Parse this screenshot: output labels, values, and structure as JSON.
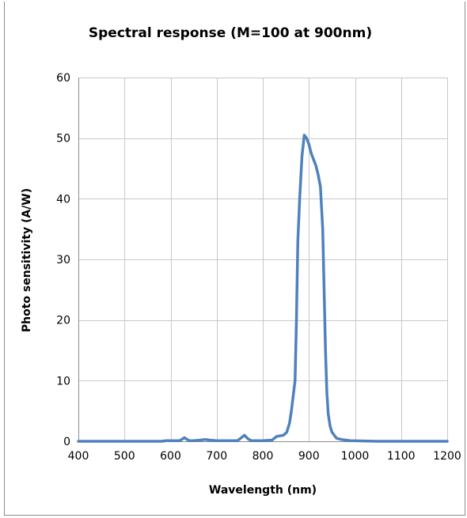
{
  "chart_data": {
    "type": "line",
    "title": "Spectral response (M=100 at 900nm)",
    "xlabel": "Wavelength (nm)",
    "ylabel": "Photo sensitivity (A/W)",
    "xlim": [
      400,
      1200
    ],
    "ylim": [
      0,
      60
    ],
    "x_ticks": [
      400,
      500,
      600,
      700,
      800,
      900,
      1000,
      1100,
      1200
    ],
    "y_ticks": [
      0,
      10,
      20,
      30,
      40,
      50,
      60
    ],
    "grid": true,
    "legend": "none",
    "colors": {
      "series": "#4f81bd",
      "grid": "#c8c8c8",
      "axis": "#8c8c8c"
    },
    "series": [
      {
        "x": [
          400,
          580,
          590,
          620,
          630,
          640,
          650,
          665,
          675,
          685,
          700,
          720,
          745,
          752,
          760,
          768,
          775,
          800,
          820,
          830,
          845,
          852,
          858,
          862,
          866,
          870,
          873,
          876,
          880,
          885,
          890,
          895,
          900,
          905,
          910,
          915,
          920,
          925,
          930,
          933,
          936,
          939,
          942,
          946,
          950,
          960,
          970,
          990,
          1050,
          1200
        ],
        "y": [
          0,
          0,
          0.1,
          0.1,
          0.6,
          0.1,
          0.1,
          0.2,
          0.3,
          0.2,
          0.1,
          0.1,
          0.1,
          0.5,
          1.0,
          0.4,
          0.1,
          0.1,
          0.2,
          0.8,
          1.0,
          1.5,
          3.0,
          5.0,
          7.5,
          10.0,
          20.0,
          33.0,
          40.0,
          47.0,
          50.5,
          50.0,
          49.0,
          47.5,
          46.5,
          45.5,
          44.0,
          42.0,
          35.0,
          25.0,
          15.0,
          8.0,
          4.5,
          2.5,
          1.5,
          0.5,
          0.3,
          0.1,
          0,
          0
        ]
      }
    ]
  }
}
